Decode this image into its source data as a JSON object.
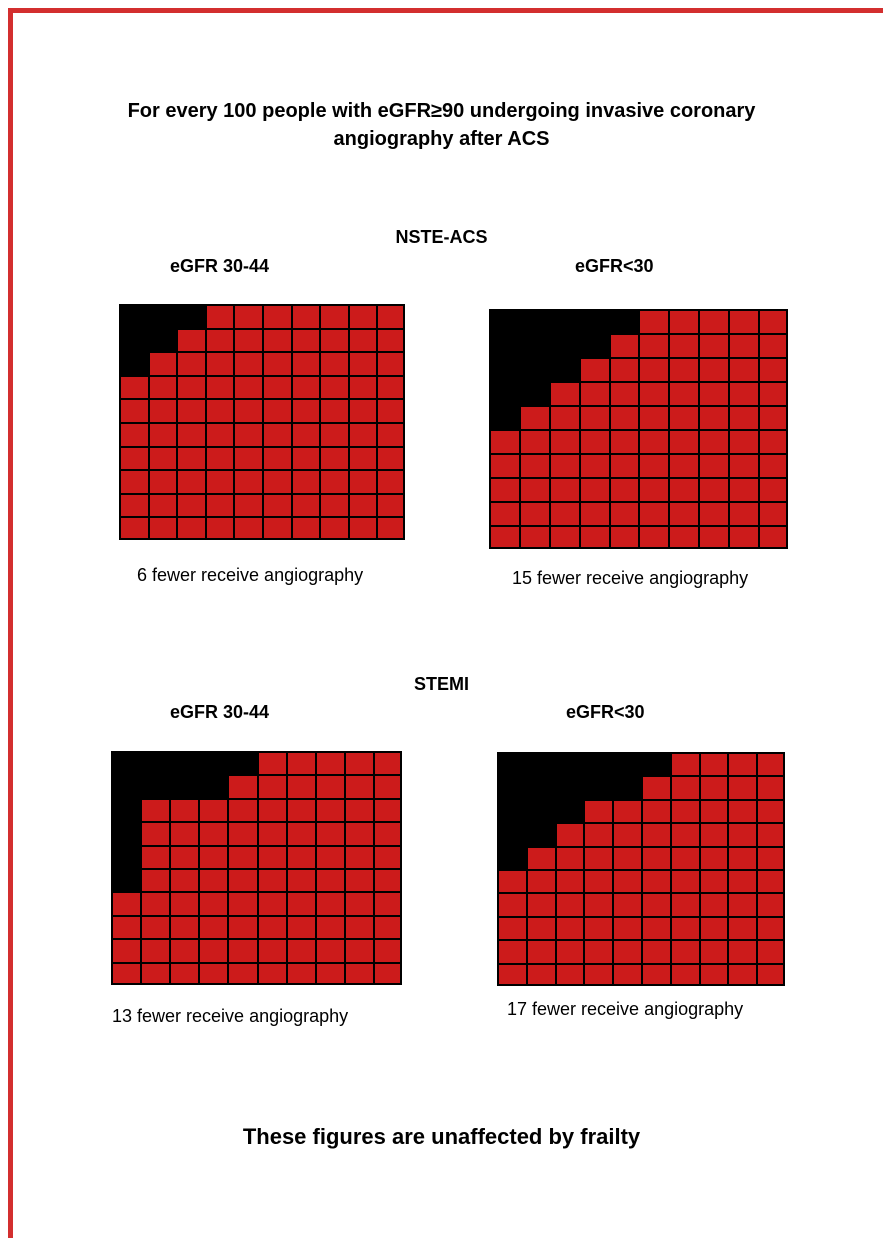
{
  "heading": {
    "line1": "For every 100 people with eGFR≥90 undergoing invasive coronary",
    "line2": "angiography after ACS"
  },
  "sections": [
    {
      "title": "NSTE-ACS",
      "panels": [
        {
          "label": "eGFR 30-44",
          "caption": "6 fewer receive angiography",
          "fewer": 6
        },
        {
          "label": "eGFR<30",
          "caption": "15 fewer receive angiography",
          "fewer": 15
        }
      ]
    },
    {
      "title": "STEMI",
      "panels": [
        {
          "label": "eGFR 30-44",
          "caption": "13 fewer receive angiography",
          "fewer": 13
        },
        {
          "label": "eGFR<30",
          "caption": "17 fewer receive angiography",
          "fewer": 17
        }
      ]
    }
  ],
  "footer": "These figures are unaffected by frailty",
  "colors": {
    "frame": "#d32f2f",
    "receive": "#cc1b1b",
    "fewer": "#000000"
  },
  "chart_data": [
    {
      "type": "waffle",
      "group": "NSTE-ACS",
      "label": "eGFR 30-44",
      "total": 100,
      "fewer": 6,
      "black_per_row": [
        3,
        2,
        1,
        0,
        0,
        0,
        0,
        0,
        0,
        0
      ]
    },
    {
      "type": "waffle",
      "group": "NSTE-ACS",
      "label": "eGFR<30",
      "total": 100,
      "fewer": 15,
      "black_per_row": [
        5,
        4,
        3,
        2,
        1,
        0,
        0,
        0,
        0,
        0
      ]
    },
    {
      "type": "waffle",
      "group": "STEMI",
      "label": "eGFR 30-44",
      "total": 100,
      "fewer": 13,
      "black_per_row": [
        5,
        4,
        1,
        1,
        1,
        1,
        0,
        0,
        0,
        0
      ]
    },
    {
      "type": "waffle",
      "group": "STEMI",
      "label": "eGFR<30",
      "total": 100,
      "fewer": 17,
      "black_per_row": [
        6,
        5,
        3,
        2,
        1,
        0,
        0,
        0,
        0,
        0
      ]
    }
  ]
}
